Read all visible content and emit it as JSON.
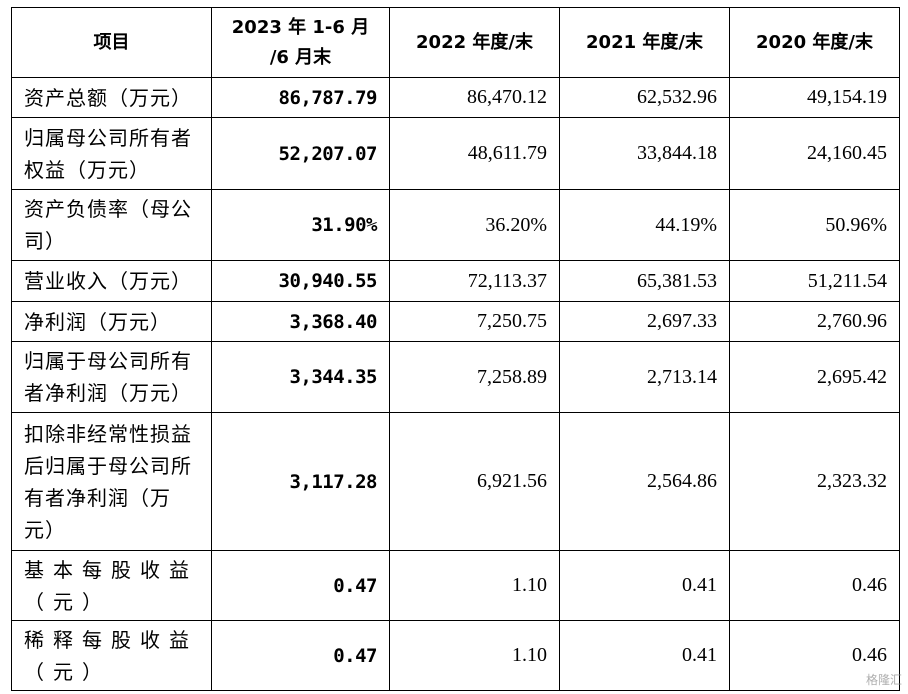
{
  "table": {
    "headers": [
      "项目",
      "2023 年 1-6 月\n/6 月末",
      "2022 年度/末",
      "2021 年度/末",
      "2020 年度/末"
    ],
    "rows": [
      {
        "item": "资产总额（万元）",
        "values": [
          "86,787.79",
          "86,470.12",
          "62,532.96",
          "49,154.19"
        ]
      },
      {
        "item": "归属母公司所有者权益（万元）",
        "values": [
          "52,207.07",
          "48,611.79",
          "33,844.18",
          "24,160.45"
        ]
      },
      {
        "item": "资产负债率（母公司）",
        "values": [
          "31.90%",
          "36.20%",
          "44.19%",
          "50.96%"
        ]
      },
      {
        "item": "营业收入（万元）",
        "values": [
          "30,940.55",
          "72,113.37",
          "65,381.53",
          "51,211.54"
        ]
      },
      {
        "item": "净利润（万元）",
        "values": [
          "3,368.40",
          "7,250.75",
          "2,697.33",
          "2,760.96"
        ]
      },
      {
        "item": "归属于母公司所有者净利润（万元）",
        "values": [
          "3,344.35",
          "7,258.89",
          "2,713.14",
          "2,695.42"
        ]
      },
      {
        "item": "扣除非经常性损益后归属于母公司所有者净利润（万元）",
        "values": [
          "3,117.28",
          "6,921.56",
          "2,564.86",
          "2,323.32"
        ]
      },
      {
        "item": "基本每股收益（元）",
        "values": [
          "0.47",
          "1.10",
          "0.41",
          "0.46"
        ]
      },
      {
        "item": "稀释每股收益（元）",
        "values": [
          "0.47",
          "1.10",
          "0.41",
          "0.46"
        ]
      }
    ]
  },
  "watermark": "格隆汇"
}
